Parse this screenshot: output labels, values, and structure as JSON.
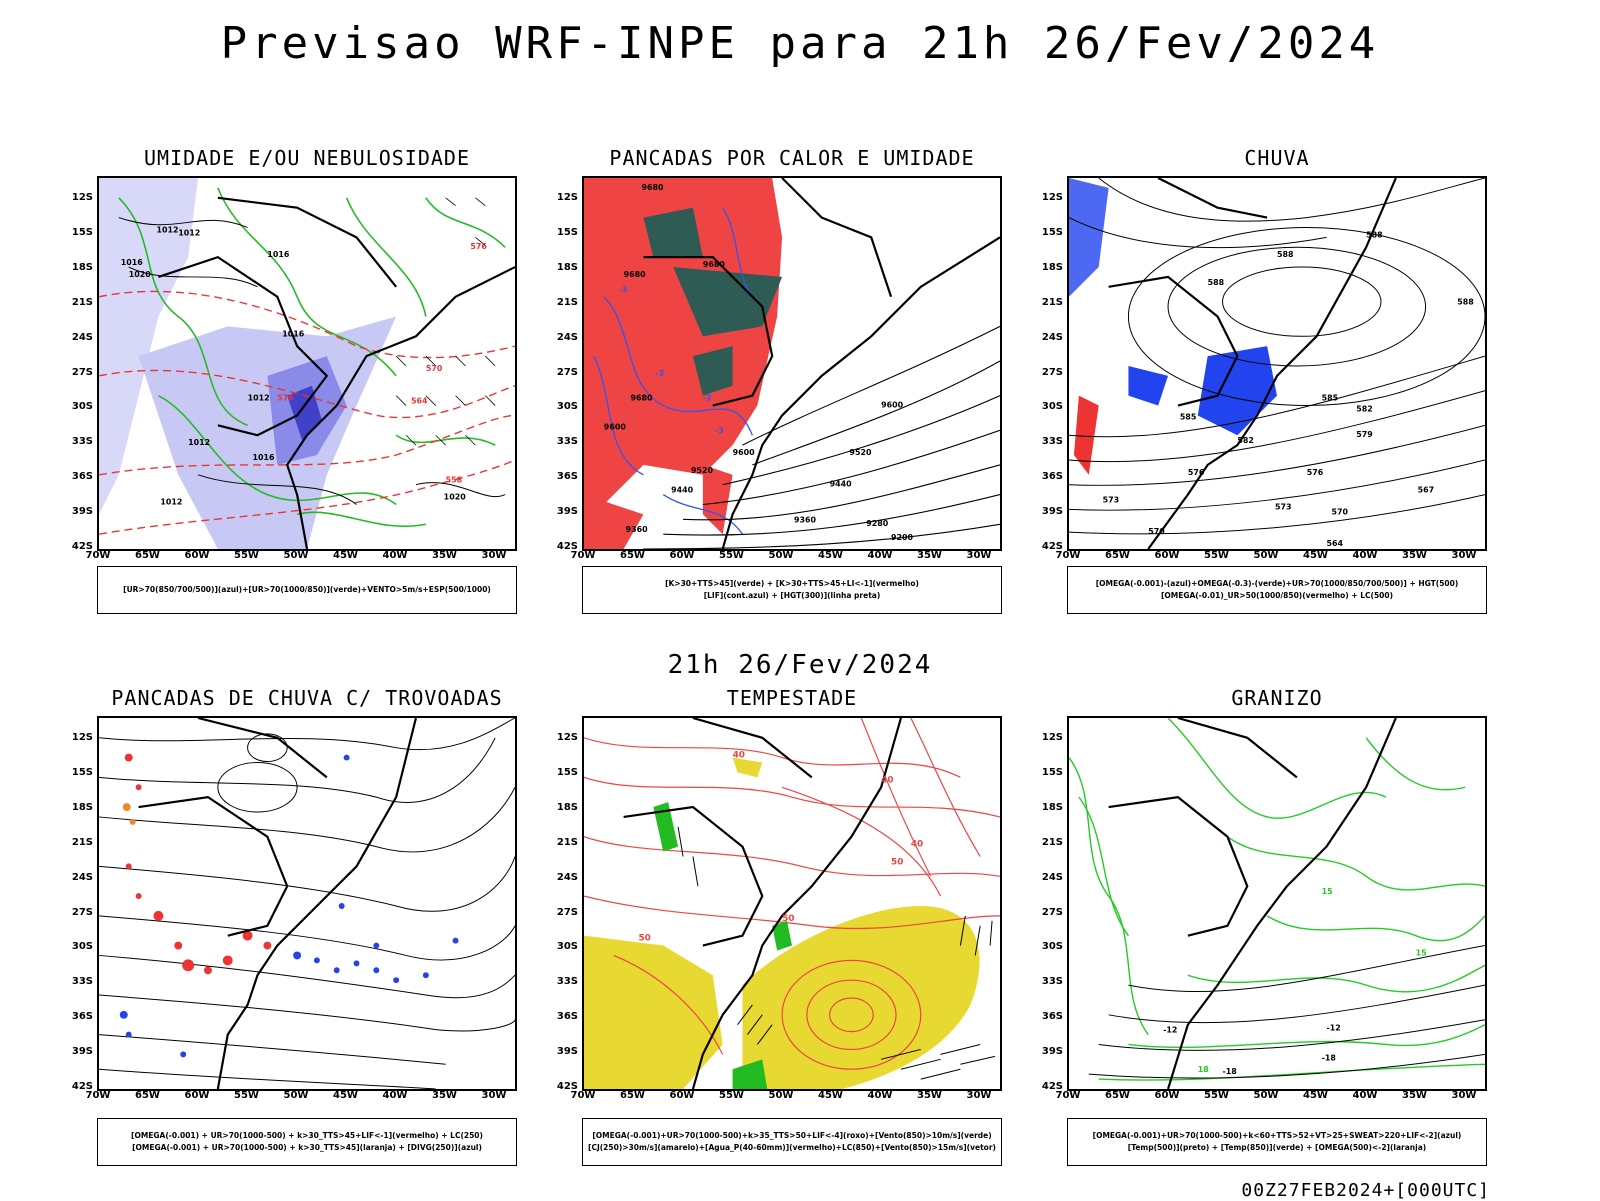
{
  "header": {
    "title": "Previsao WRF-INPE  para 21h 26/Fev/2024",
    "subtitle": "21h 26/Fev/2024",
    "stamp": "00Z27FEB2024+[000UTC]"
  },
  "axes": {
    "lat_labels": [
      "12S",
      "15S",
      "18S",
      "21S",
      "24S",
      "27S",
      "30S",
      "33S",
      "36S",
      "39S",
      "42S"
    ],
    "lon_labels": [
      "70W",
      "65W",
      "60W",
      "55W",
      "50W",
      "45W",
      "40W",
      "35W",
      "30W"
    ]
  },
  "panels": [
    {
      "title": "UMIDADE E/OU NEBULOSIDADE",
      "legend": [
        "[UR>70(850/700/500)](azul)+[UR>70(1000/850)](verde)+VENTO>5m/s+ESP(500/1000)"
      ]
    },
    {
      "title": "PANCADAS POR CALOR E UMIDADE",
      "legend": [
        "[K>30+TTS>45](verde)  +  [K>30+TTS>45+LI<-1](vermelho)",
        "[LIF](cont.azul)  +  [HGT(300)](linha preta)"
      ]
    },
    {
      "title": "CHUVA",
      "legend": [
        "[OMEGA(-0.001)-(azul)+OMEGA(-0.3)-(verde)+UR>70(1000/850/700/500)]  +  HGT(500)",
        "[OMEGA(-0.01)_UR>50(1000/850)(vermelho)  +  LC(500)"
      ]
    },
    {
      "title": "PANCADAS DE CHUVA C/ TROVOADAS",
      "legend": [
        "[OMEGA(-0.001) + UR>70(1000-500) + k>30_TTS>45+LIF<-1](vermelho) + LC(250)",
        "[OMEGA(-0.001) + UR>70(1000-500) + k>30_TTS>45](laranja) + [DIVG(250)](azul)"
      ]
    },
    {
      "title": "TEMPESTADE",
      "legend": [
        "[OMEGA(-0.001)+UR>70(1000-500)+k>35_TTS>50+LIF<-4](roxo)+[Vento(850)>10m/s](verde)",
        "[CJ(250)>30m/s](amarelo)+[Agua_P(40-60mm)](vermelho)+LC(850)+[Vento(850)>15m/s](vetor)"
      ]
    },
    {
      "title": "GRANIZO",
      "legend": [
        "[OMEGA(-0.001)+UR>70(1000-500)+k<60+TTS>52+VT>25+SWEAT>220+LIF<-2](azul)",
        "[Temp(500)](preto)  +  [Temp(850)](verde)  +  [OMEGA(500)<-2](laranja)"
      ]
    }
  ],
  "map_labels": {
    "p1": [
      "1012",
      "1012",
      "1016",
      "1016",
      "1020",
      "1016",
      "1012",
      "1012",
      "1016",
      "1012",
      "1020",
      "576",
      "576",
      "570",
      "564",
      "558"
    ],
    "p2": [
      "9680",
      "9680",
      "9680",
      "9680",
      "9600",
      "9520",
      "9440",
      "9360",
      "9280",
      "9200",
      "9600",
      "9520",
      "9440",
      "9360",
      "9600",
      "-3",
      "-3",
      "-2",
      "-3"
    ],
    "p3": [
      "588",
      "588",
      "588",
      "585",
      "582",
      "579",
      "576",
      "573",
      "570",
      "567",
      "588",
      "585",
      "582",
      "576",
      "573",
      "570",
      "564"
    ],
    "p6": [
      "-12",
      "-12",
      "-18",
      "-18",
      "15",
      "15",
      "18"
    ],
    "p5": [
      "40",
      "40",
      "50",
      "50",
      "40",
      "50"
    ]
  }
}
